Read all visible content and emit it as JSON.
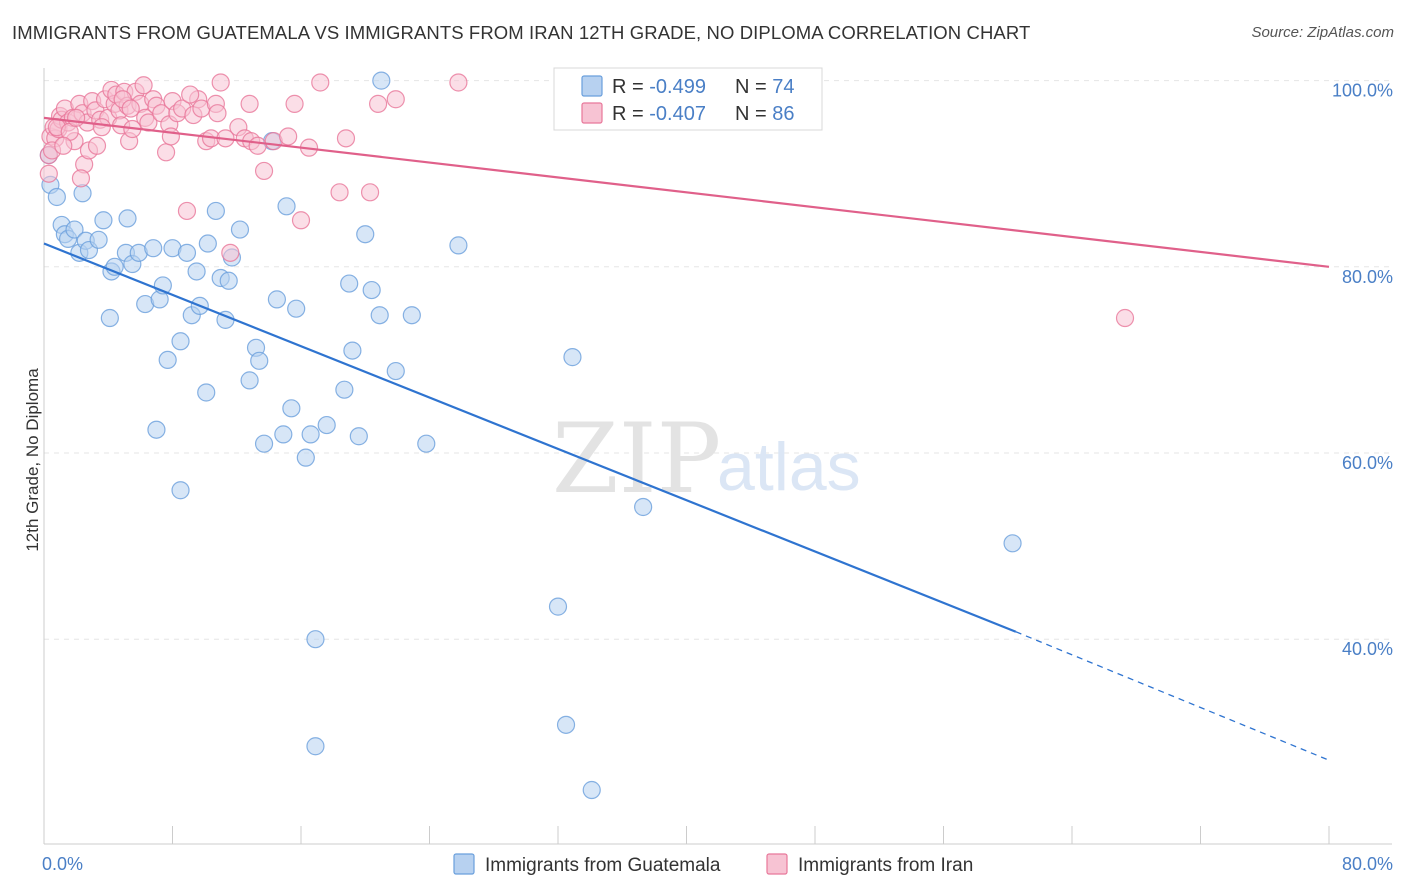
{
  "title": "IMMIGRANTS FROM GUATEMALA VS IMMIGRANTS FROM IRAN 12TH GRADE, NO DIPLOMA CORRELATION CHART",
  "source": "Source: ZipAtlas.com",
  "watermark": {
    "zip": "ZIP",
    "atlas": "atlas"
  },
  "colors": {
    "blue": "#6a9fdc",
    "blue_fill": "#b7d1f0",
    "blue_line": "#2f74d0",
    "pink": "#e8779a",
    "pink_fill": "#f7c3d3",
    "pink_line": "#e0608a",
    "tick": "#4a7fc6",
    "grid": "#e5e5e5"
  },
  "legend": {
    "rows": [
      {
        "r_label": "R = ",
        "r_value": "-0.499",
        "n_label": "N = ",
        "n_value": "74"
      },
      {
        "r_label": "R = ",
        "r_value": "-0.407",
        "n_label": "N = ",
        "n_value": "86"
      }
    ]
  },
  "chart_data": {
    "type": "scatter",
    "ylabel": "12th Grade, No Diploma",
    "xlim": [
      0,
      80
    ],
    "ylim": [
      18,
      102
    ],
    "x_ticks": [
      {
        "value": 0,
        "label": "0.0%"
      },
      {
        "value": 80,
        "label": "80.0%"
      }
    ],
    "y_ticks": [
      {
        "value": 100,
        "label": "100.0%"
      },
      {
        "value": 80,
        "label": "80.0%"
      },
      {
        "value": 60,
        "label": "60.0%"
      },
      {
        "value": 40,
        "label": "40.0%"
      }
    ],
    "series": [
      {
        "name": "Immigrants from Guatemala",
        "trend": {
          "x0": 0,
          "y0": 82.5,
          "x1": 60.5,
          "y1": 40.8,
          "dash_to_x": 80,
          "dash_to_y": 27
        },
        "points": [
          [
            0.3,
            92.0
          ],
          [
            0.4,
            88.8
          ],
          [
            0.8,
            87.5
          ],
          [
            1.1,
            84.5
          ],
          [
            1.3,
            83.5
          ],
          [
            1.5,
            83.0
          ],
          [
            1.9,
            84.0
          ],
          [
            2.2,
            81.5
          ],
          [
            2.6,
            82.8
          ],
          [
            2.8,
            81.8
          ],
          [
            3.4,
            82.9
          ],
          [
            3.7,
            85.0
          ],
          [
            4.2,
            79.5
          ],
          [
            4.4,
            80.0
          ],
          [
            5.1,
            81.5
          ],
          [
            5.2,
            85.2
          ],
          [
            5.5,
            80.3
          ],
          [
            5.9,
            81.5
          ],
          [
            6.3,
            76.0
          ],
          [
            6.8,
            82.0
          ],
          [
            7.2,
            76.5
          ],
          [
            7.4,
            78.0
          ],
          [
            7.7,
            70.0
          ],
          [
            8.0,
            82.0
          ],
          [
            8.5,
            72.0
          ],
          [
            8.9,
            81.5
          ],
          [
            9.2,
            74.8
          ],
          [
            9.5,
            79.5
          ],
          [
            9.7,
            75.8
          ],
          [
            10.1,
            66.5
          ],
          [
            10.7,
            86.0
          ],
          [
            11.0,
            78.8
          ],
          [
            11.3,
            74.3
          ],
          [
            11.5,
            78.5
          ],
          [
            11.7,
            81.0
          ],
          [
            12.2,
            84.0
          ],
          [
            12.8,
            67.8
          ],
          [
            13.2,
            71.3
          ],
          [
            13.4,
            69.9
          ],
          [
            13.7,
            61.0
          ],
          [
            14.2,
            93.5
          ],
          [
            14.5,
            76.5
          ],
          [
            14.9,
            62.0
          ],
          [
            15.1,
            86.5
          ],
          [
            15.4,
            64.8
          ],
          [
            15.7,
            75.5
          ],
          [
            16.3,
            59.5
          ],
          [
            16.6,
            62.0
          ],
          [
            16.9,
            40.0
          ],
          [
            17.6,
            63.0
          ],
          [
            18.7,
            66.8
          ],
          [
            19.0,
            78.2
          ],
          [
            19.2,
            71.0
          ],
          [
            19.6,
            61.8
          ],
          [
            20.0,
            83.5
          ],
          [
            20.4,
            77.5
          ],
          [
            20.9,
            74.8
          ],
          [
            21.9,
            68.8
          ],
          [
            22.9,
            74.8
          ],
          [
            23.8,
            61.0
          ],
          [
            25.8,
            82.3
          ],
          [
            32.0,
            43.5
          ],
          [
            32.5,
            30.8
          ],
          [
            32.9,
            70.3
          ],
          [
            34.1,
            23.8
          ],
          [
            37.3,
            54.2
          ],
          [
            60.3,
            50.3
          ],
          [
            7.0,
            62.5
          ],
          [
            8.5,
            56.0
          ],
          [
            16.9,
            28.5
          ],
          [
            21.0,
            100.0
          ],
          [
            4.1,
            74.5
          ],
          [
            10.2,
            82.5
          ],
          [
            2.4,
            87.9
          ]
        ]
      },
      {
        "name": "Immigrants from Iran",
        "trend": {
          "x0": 0,
          "y0": 96.0,
          "x1": 80,
          "y1": 80.0
        },
        "points": [
          [
            0.3,
            92.0
          ],
          [
            0.4,
            94.0
          ],
          [
            0.6,
            95.0
          ],
          [
            0.7,
            93.8
          ],
          [
            0.9,
            94.8
          ],
          [
            1.0,
            96.2
          ],
          [
            1.1,
            95.8
          ],
          [
            1.3,
            97.0
          ],
          [
            1.5,
            95.5
          ],
          [
            1.8,
            96.0
          ],
          [
            1.9,
            93.5
          ],
          [
            2.2,
            97.5
          ],
          [
            2.4,
            96.5
          ],
          [
            2.5,
            91.0
          ],
          [
            2.7,
            95.5
          ],
          [
            2.8,
            92.5
          ],
          [
            3.0,
            97.8
          ],
          [
            3.2,
            96.8
          ],
          [
            3.3,
            93.0
          ],
          [
            3.5,
            95.8
          ],
          [
            3.8,
            98.0
          ],
          [
            4.0,
            96.0
          ],
          [
            4.2,
            99.0
          ],
          [
            4.4,
            97.5
          ],
          [
            4.5,
            98.5
          ],
          [
            4.7,
            96.8
          ],
          [
            4.8,
            95.2
          ],
          [
            5.0,
            98.8
          ],
          [
            5.2,
            97.3
          ],
          [
            5.3,
            93.5
          ],
          [
            5.5,
            94.8
          ],
          [
            5.7,
            98.8
          ],
          [
            6.0,
            97.5
          ],
          [
            6.3,
            96.0
          ],
          [
            6.5,
            95.5
          ],
          [
            6.8,
            98.0
          ],
          [
            7.0,
            97.3
          ],
          [
            7.3,
            96.5
          ],
          [
            7.6,
            92.3
          ],
          [
            7.8,
            95.3
          ],
          [
            8.0,
            97.8
          ],
          [
            8.3,
            96.5
          ],
          [
            8.6,
            97.0
          ],
          [
            8.9,
            86.0
          ],
          [
            9.3,
            96.3
          ],
          [
            9.6,
            98.0
          ],
          [
            9.8,
            97.0
          ],
          [
            10.1,
            93.5
          ],
          [
            10.4,
            93.8
          ],
          [
            10.7,
            97.5
          ],
          [
            11.0,
            99.8
          ],
          [
            11.3,
            93.8
          ],
          [
            11.6,
            81.5
          ],
          [
            12.1,
            95.0
          ],
          [
            12.5,
            93.8
          ],
          [
            12.9,
            93.5
          ],
          [
            13.3,
            93.0
          ],
          [
            13.7,
            90.3
          ],
          [
            14.3,
            93.5
          ],
          [
            15.2,
            94.0
          ],
          [
            15.6,
            97.5
          ],
          [
            16.0,
            85.0
          ],
          [
            16.5,
            92.8
          ],
          [
            17.2,
            99.8
          ],
          [
            18.4,
            88.0
          ],
          [
            18.8,
            93.8
          ],
          [
            20.3,
            88.0
          ],
          [
            20.8,
            97.5
          ],
          [
            21.9,
            98.0
          ],
          [
            25.8,
            99.8
          ],
          [
            67.3,
            74.5
          ],
          [
            0.3,
            90.0
          ],
          [
            0.8,
            95.0
          ],
          [
            1.6,
            94.5
          ],
          [
            2.0,
            96.0
          ],
          [
            3.6,
            95.0
          ],
          [
            4.9,
            98.0
          ],
          [
            6.2,
            99.5
          ],
          [
            9.1,
            98.5
          ],
          [
            10.8,
            96.5
          ],
          [
            12.8,
            97.5
          ],
          [
            2.3,
            89.5
          ],
          [
            0.5,
            92.5
          ],
          [
            1.2,
            93.0
          ],
          [
            5.4,
            97.0
          ],
          [
            7.9,
            94.0
          ]
        ]
      }
    ],
    "legend_position": "top-center",
    "grid": true
  }
}
